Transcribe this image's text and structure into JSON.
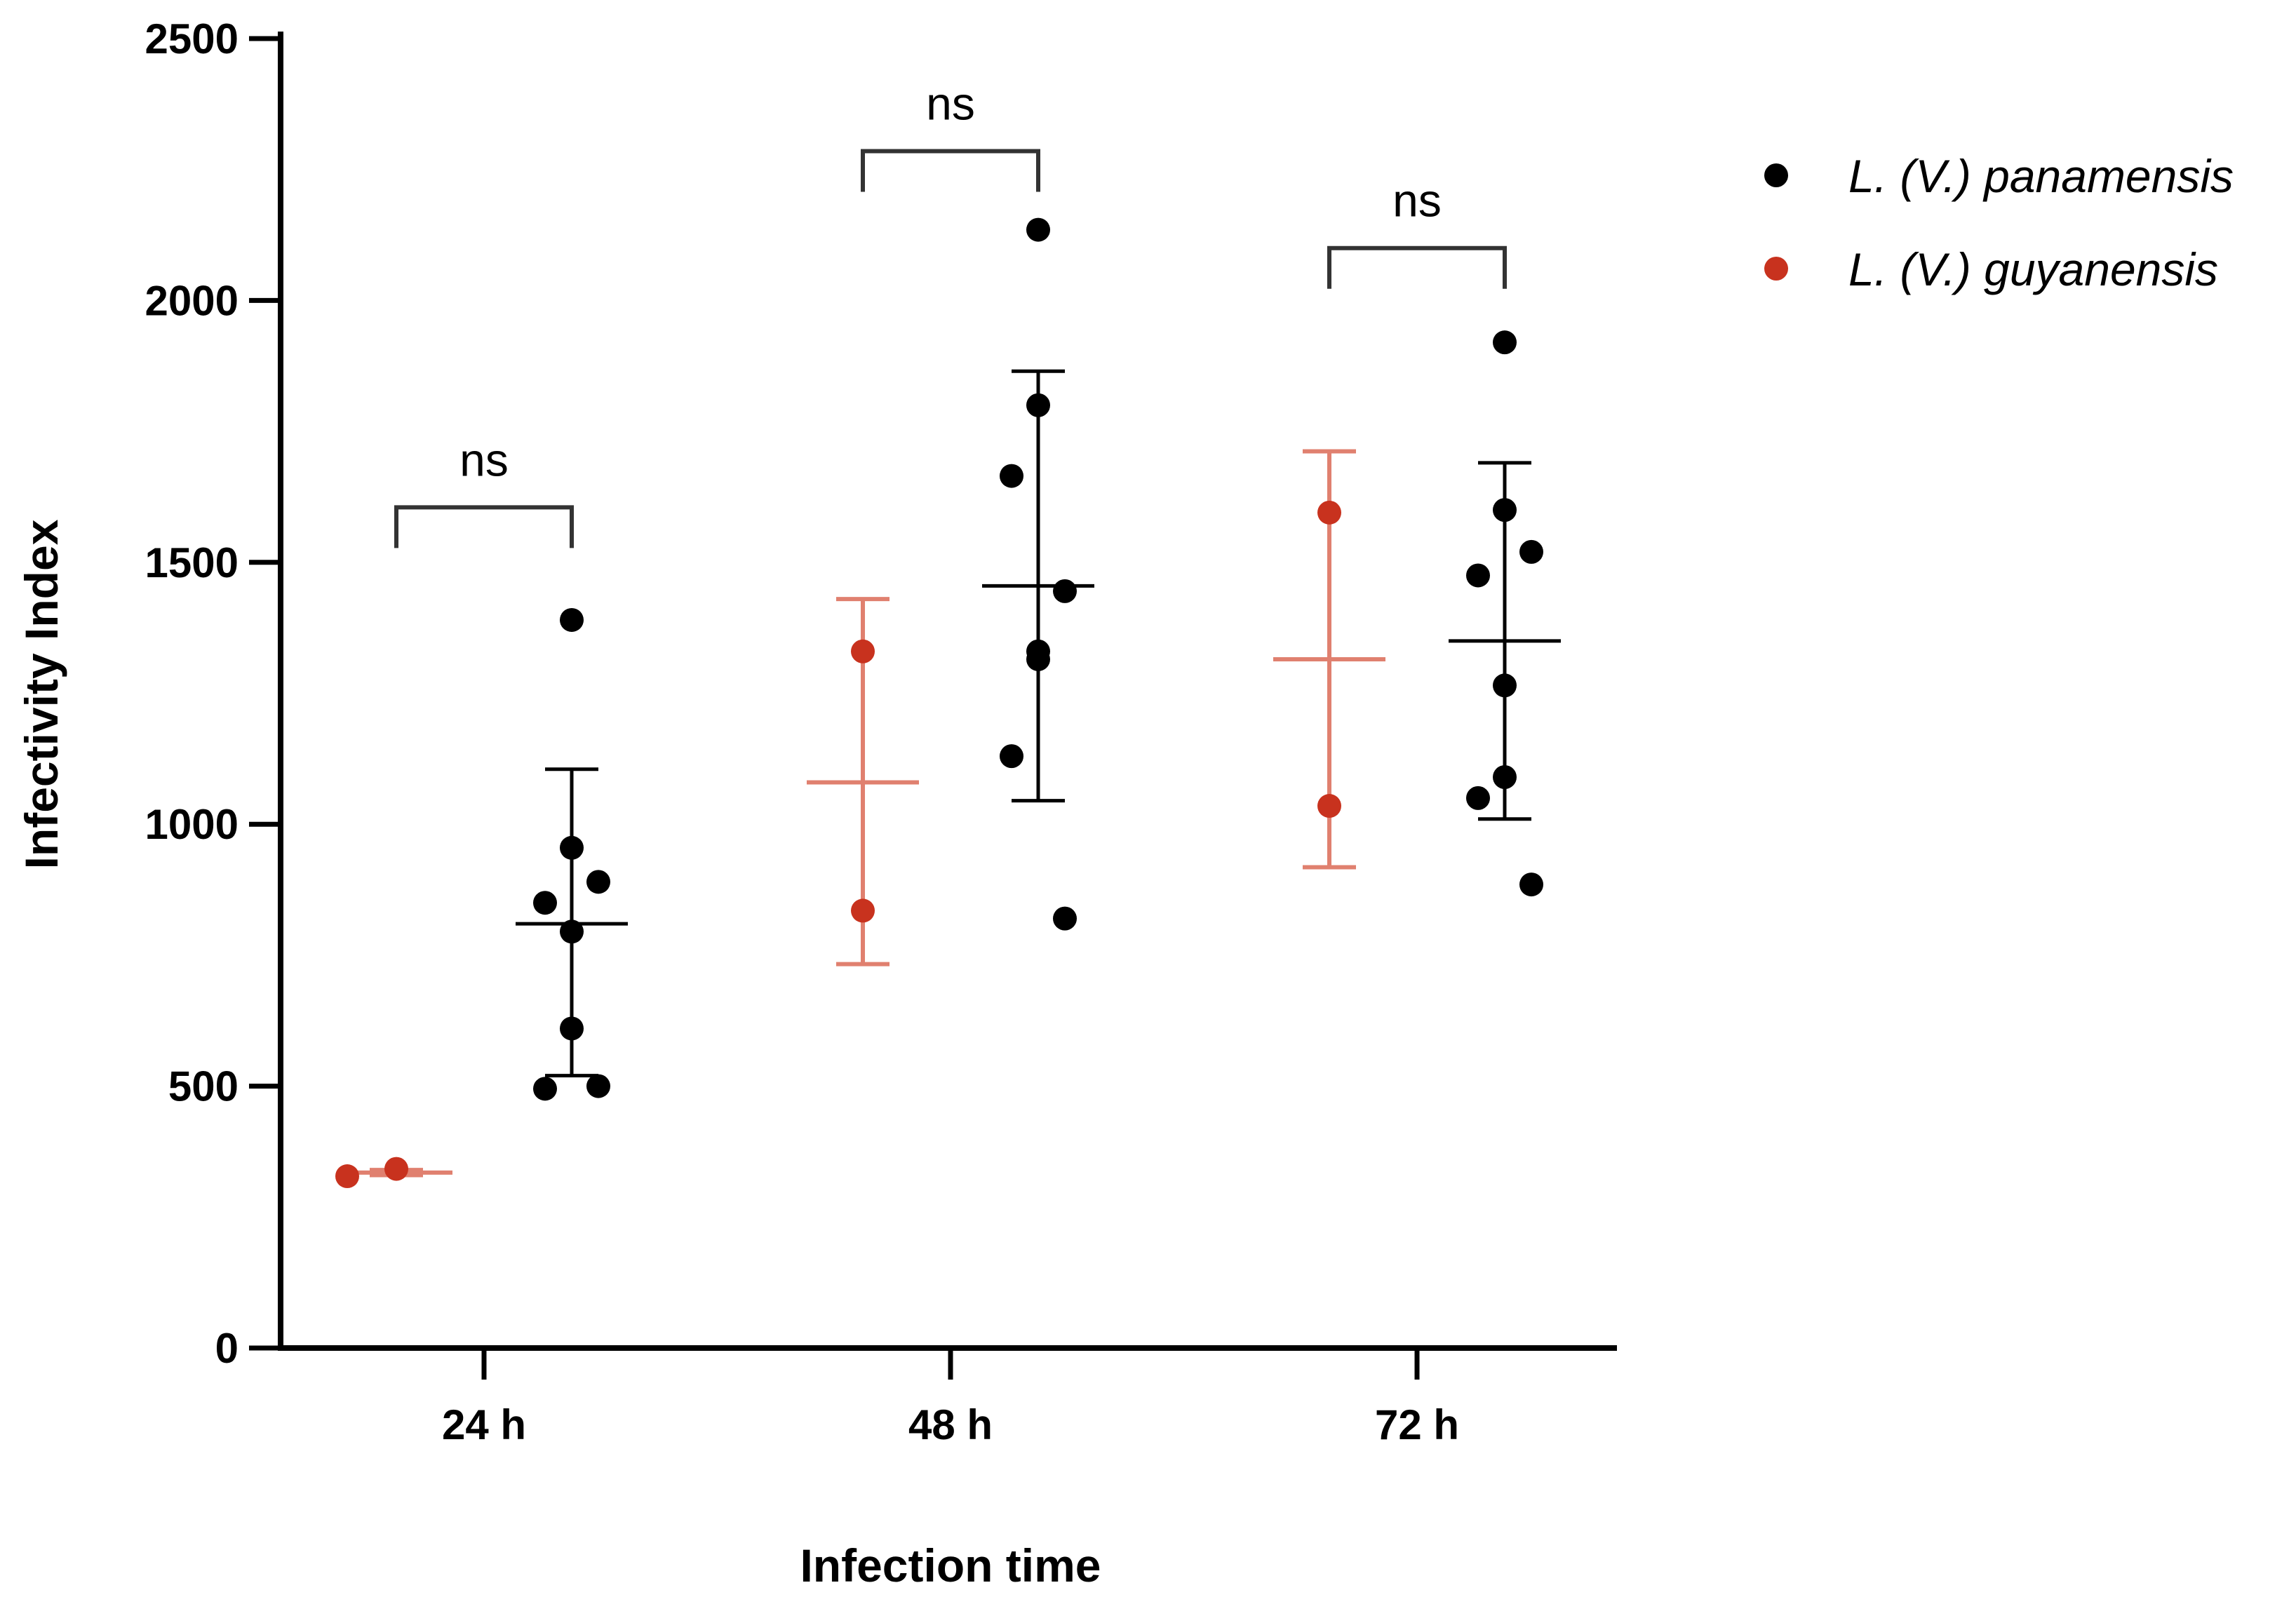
{
  "chart_data": {
    "type": "scatter",
    "subtype": "grouped dot plot with mean and SD",
    "title": "",
    "xlabel": "Infection time",
    "ylabel": "Infectivity Index",
    "ylim": [
      0,
      2500
    ],
    "yticks": [
      0,
      500,
      1000,
      1500,
      2000,
      2500
    ],
    "categories": [
      "24 h",
      "48 h",
      "72 h"
    ],
    "legend_position": "top-right",
    "series": [
      {
        "name": "L. (V.) panamensis",
        "color": "#000000",
        "groups": [
          {
            "category": "24 h",
            "mean": 810,
            "sd_low": 520,
            "sd_high": 1105,
            "points": [
              1390,
              955,
              850,
              890,
              795,
              610,
              495,
              500
            ]
          },
          {
            "category": "48 h",
            "mean": 1455,
            "sd_low": 1045,
            "sd_high": 1865,
            "points": [
              2135,
              1800,
              1665,
              1445,
              1315,
              1330,
              1130,
              820
            ]
          },
          {
            "category": "72 h",
            "mean": 1350,
            "sd_low": 1010,
            "sd_high": 1690,
            "points": [
              1920,
              1600,
              1475,
              1520,
              1265,
              1090,
              1050,
              885
            ]
          }
        ]
      },
      {
        "name": "L. (V.) guyanensis",
        "color": "#c8321e",
        "groups": [
          {
            "category": "24 h",
            "mean": 335,
            "sd_low": 330,
            "sd_high": 340,
            "points": [
              328,
              342
            ]
          },
          {
            "category": "48 h",
            "mean": 1080,
            "sd_low": 733,
            "sd_high": 1430,
            "points": [
              1330,
              835
            ]
          },
          {
            "category": "72 h",
            "mean": 1315,
            "sd_low": 918,
            "sd_high": 1712,
            "points": [
              1595,
              1035
            ]
          }
        ]
      }
    ],
    "comparisons": [
      {
        "category": "24 h",
        "label": "ns"
      },
      {
        "category": "48 h",
        "label": "ns"
      },
      {
        "category": "72 h",
        "label": "ns"
      }
    ]
  }
}
